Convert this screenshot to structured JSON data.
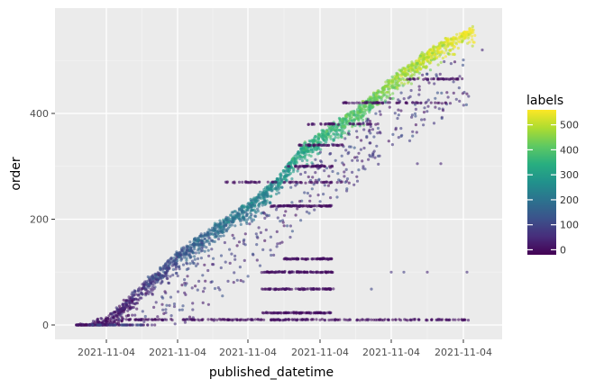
{
  "chart_data": {
    "type": "scatter",
    "xlabel": "published_datetime",
    "ylabel": "order",
    "x_tick_labels": [
      "2021-11-04",
      "2021-11-04",
      "2021-11-04",
      "2021-11-04",
      "2021-11-04",
      "2021-11-04"
    ],
    "y_ticks": [
      0,
      200,
      400
    ],
    "ylim": [
      -15,
      575
    ],
    "grid": true,
    "background": "#ebebeb",
    "legend": {
      "title": "labels",
      "placement": "right",
      "ticks": [
        0,
        100,
        200,
        300,
        400,
        500
      ],
      "range": [
        -20,
        560
      ],
      "colormap": "viridis"
    },
    "description": "Dense diagonal band of points from (start, 0) to (end, ~570), colored by labels; plus horizontal streaks of low-label points at orders ~10, ~23, ~68, ~100, ~125, ~225, ~270, ~300, ~420"
  }
}
